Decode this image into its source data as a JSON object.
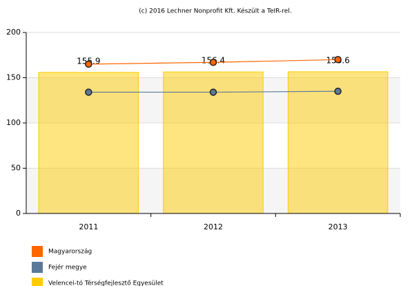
{
  "chart_data": {
    "type": "bar",
    "title": "(c) 2016 Lechner Nonprofit Kft. Készült a TeIR-rel.",
    "categories": [
      "2011",
      "2012",
      "2013"
    ],
    "series": [
      {
        "name": "Magyarország",
        "type": "line",
        "color": "#ff6600",
        "values": [
          165,
          167,
          170
        ]
      },
      {
        "name": "Fejér megye",
        "type": "line",
        "color": "#5b7a99",
        "values": [
          134,
          134,
          135
        ]
      },
      {
        "name": "Velencei-tó Térségfejlesztő Egyesület",
        "type": "bar",
        "color": "#ffcc00",
        "values": [
          155.9,
          156.4,
          156.6
        ]
      }
    ],
    "ylim": [
      0,
      200
    ],
    "yticks": [
      0,
      50,
      100,
      150,
      200
    ],
    "grid": true
  }
}
